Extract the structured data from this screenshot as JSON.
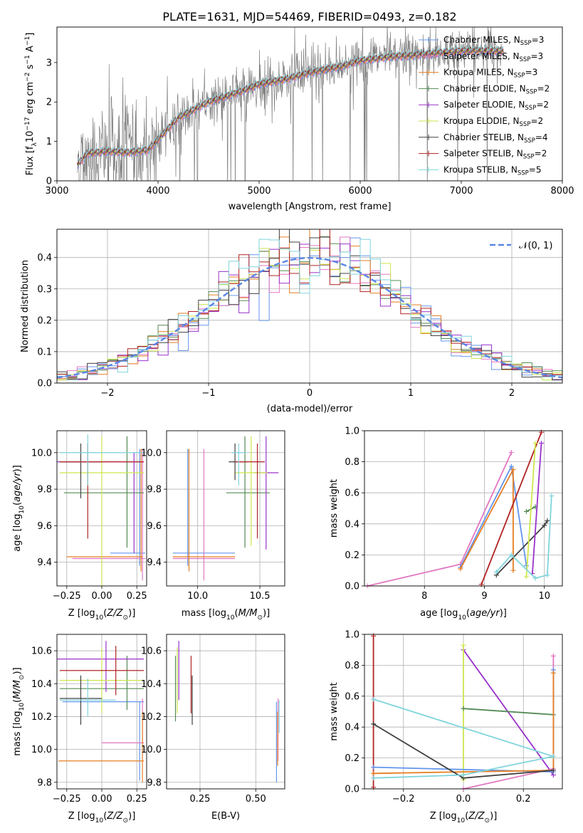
{
  "title": "PLATE=1631, MJD=54469, FIBERID=0493, z=0.182",
  "chart_data": [
    {
      "type": "line",
      "panel": "spectrum",
      "xlabel": "wavelength [Angstrom, rest frame]",
      "ylabel": "Flux [f_λ 10^-17 erg cm^-2 s^-1 A^-1]",
      "xlim": [
        3000,
        8000
      ],
      "ylim": [
        0,
        3.9
      ],
      "xticks": [
        3000,
        4000,
        5000,
        6000,
        7000,
        8000
      ],
      "yticks": [
        0,
        1,
        2,
        3
      ],
      "grid": false,
      "legend_position": "top-right",
      "legend": [
        {
          "base": "Chabrier MILES, N",
          "n": "3",
          "color": "#6495ed"
        },
        {
          "base": "Salpeter MILES, N",
          "n": "3",
          "color": "#e377c2"
        },
        {
          "base": "Kroupa MILES, N",
          "n": "3",
          "color": "#e67e22"
        },
        {
          "base": "Chabrier ELODIE, N",
          "n": "2",
          "color": "#548b54"
        },
        {
          "base": "Salpeter ELODIE, N",
          "n": "2",
          "color": "#9932cc"
        },
        {
          "base": "Kroupa ELODIE, N",
          "n": "2",
          "color": "#cde64c"
        },
        {
          "base": "Chabrier STELIB, N",
          "n": "4",
          "color": "#404040"
        },
        {
          "base": "Salpeter STELIB, N",
          "n": "2",
          "color": "#b22222"
        },
        {
          "base": "Kroupa STELIB, N",
          "n": "5",
          "color": "#7fd4dc"
        }
      ],
      "legend_subscript": "SSP",
      "observed_color": "#808080",
      "data_x_range": [
        3200,
        7420
      ],
      "model_x_range": [
        3200,
        7420
      ],
      "continuum_anchor_points": {
        "x": [
          3200,
          3300,
          3500,
          3700,
          3900,
          4000,
          4200,
          4500,
          4800,
          5000,
          5300,
          5500,
          5800,
          6000,
          6300,
          6600,
          6800,
          7000,
          7200,
          7420
        ],
        "y": [
          0.4,
          0.7,
          0.75,
          0.72,
          0.78,
          1.05,
          1.6,
          2.0,
          2.25,
          2.45,
          2.6,
          2.75,
          2.9,
          3.05,
          3.15,
          3.2,
          3.25,
          3.3,
          3.3,
          3.3
        ]
      }
    },
    {
      "type": "histogram",
      "panel": "residuals",
      "xlabel": "(data-model)/error",
      "ylabel": "Normed distribution",
      "xlim": [
        -2.5,
        2.5
      ],
      "ylim": [
        0,
        0.49
      ],
      "xticks": [
        -2,
        -1,
        0,
        1,
        2
      ],
      "yticks": [
        0.0,
        0.1,
        0.2,
        0.3,
        0.4
      ],
      "grid": true,
      "legend_position": "top-right",
      "reference_curve": {
        "name": "𝒩(0, 1)",
        "mean": 0,
        "sigma": 1,
        "color": "#5b86e5",
        "style": "dashed"
      },
      "bin_width": 0.1,
      "series_colors": [
        "#6495ed",
        "#e377c2",
        "#e67e22",
        "#548b54",
        "#9932cc",
        "#cde64c",
        "#404040",
        "#b22222",
        "#7fd4dc"
      ]
    },
    {
      "type": "scatter",
      "panel": "age-vs-Z",
      "xlabel": "Z [log10(Z/Z☉)]",
      "ylabel": "age [log10(age/yr)]",
      "xlim": [
        -0.32,
        0.32
      ],
      "ylim": [
        9.27,
        10.12
      ],
      "xticks": [
        -0.25,
        0.0,
        0.25
      ],
      "yticks": [
        9.4,
        9.6,
        9.8,
        10.0
      ],
      "grid": true,
      "points": [
        {
          "color": "#6495ed",
          "x": 0.27,
          "xerr": [
            0.21,
            0.04
          ],
          "y": 9.45,
          "yerr": [
            0.07,
            0.57
          ]
        },
        {
          "color": "#e377c2",
          "x": 0.29,
          "xerr": [
            0.5,
            0.02
          ],
          "y": 9.42,
          "yerr": [
            0.12,
            0.6
          ]
        },
        {
          "color": "#e67e22",
          "x": 0.28,
          "xerr": [
            0.53,
            0.01
          ],
          "y": 9.43,
          "yerr": [
            0.08,
            0.59
          ]
        },
        {
          "color": "#548b54",
          "x": 0.18,
          "xerr": [
            0.45,
            0.12
          ],
          "y": 9.78,
          "yerr": [
            0.3,
            0.31
          ]
        },
        {
          "color": "#9932cc",
          "x": 0.23,
          "xerr": [
            0.55,
            0.07
          ],
          "y": 9.95,
          "yerr": [
            0.5,
            0.05
          ]
        },
        {
          "color": "#cde64c",
          "x": 0.0,
          "xerr": [
            0.3,
            0.3
          ],
          "y": 9.89,
          "yerr": [
            0.62,
            0.2
          ]
        },
        {
          "color": "#404040",
          "x": -0.15,
          "xerr": [
            0.15,
            0.15
          ],
          "y": 9.95,
          "yerr": [
            0.2,
            0.1
          ]
        },
        {
          "color": "#b22222",
          "x": -0.1,
          "xerr": [
            0.2,
            0.4
          ],
          "y": 9.95,
          "yerr": [
            0.42,
            0.1
          ]
        },
        {
          "color": "#7fd4dc",
          "x": -0.1,
          "xerr": [
            0.2,
            0.4
          ],
          "y": 10.0,
          "yerr": [
            0.18,
            0.1
          ]
        }
      ]
    },
    {
      "type": "scatter",
      "panel": "age-vs-mass",
      "xlabel": "mass [log10(M/M☉)]",
      "ylabel": "",
      "xlim": [
        9.75,
        10.7
      ],
      "ylim": [
        9.27,
        10.12
      ],
      "xticks": [
        10.0,
        10.5
      ],
      "yticks": [
        9.4,
        9.6,
        9.8,
        10.0
      ],
      "grid": true,
      "points": [
        {
          "color": "#6495ed",
          "x": 9.92,
          "xerr": [
            0.12,
            0.38
          ],
          "y": 9.45,
          "yerr": [
            0.07,
            0.57
          ]
        },
        {
          "color": "#e377c2",
          "x": 10.05,
          "xerr": [
            0.25,
            0.25
          ],
          "y": 9.42,
          "yerr": [
            0.12,
            0.6
          ]
        },
        {
          "color": "#e67e22",
          "x": 9.93,
          "xerr": [
            0.13,
            0.37
          ],
          "y": 9.43,
          "yerr": [
            0.08,
            0.59
          ]
        },
        {
          "color": "#548b54",
          "x": 10.38,
          "xerr": [
            0.15,
            0.2
          ],
          "y": 9.78,
          "yerr": [
            0.3,
            0.31
          ]
        },
        {
          "color": "#9932cc",
          "x": 10.55,
          "xerr": [
            0.1,
            0.1
          ],
          "y": 9.89,
          "yerr": [
            0.42,
            0.2
          ]
        },
        {
          "color": "#cde64c",
          "x": 10.43,
          "xerr": [
            0.13,
            0.13
          ],
          "y": 9.89,
          "yerr": [
            0.4,
            0.2
          ]
        },
        {
          "color": "#404040",
          "x": 10.3,
          "xerr": [
            0.05,
            0.1
          ],
          "y": 9.95,
          "yerr": [
            0.1,
            0.1
          ]
        },
        {
          "color": "#b22222",
          "x": 10.48,
          "xerr": [
            0.18,
            0.06
          ],
          "y": 9.95,
          "yerr": [
            0.42,
            0.1
          ]
        },
        {
          "color": "#7fd4dc",
          "x": 10.33,
          "xerr": [
            0.06,
            0.06
          ],
          "y": 10.0,
          "yerr": [
            0.18,
            0.05
          ]
        }
      ]
    },
    {
      "type": "line",
      "panel": "massweight-vs-age",
      "xlabel": "age [log10(age/yr)]",
      "ylabel": "mass weight",
      "xlim": [
        7.0,
        10.3
      ],
      "ylim": [
        0,
        1.0
      ],
      "xticks": [
        8,
        9,
        10
      ],
      "yticks": [
        0.0,
        0.2,
        0.4,
        0.6,
        0.8,
        1.0
      ],
      "grid": true,
      "series": [
        {
          "color": "#e377c2",
          "x": [
            7.05,
            8.6,
            9.45
          ],
          "y": [
            0.0,
            0.14,
            0.86
          ]
        },
        {
          "color": "#6495ed",
          "x": [
            8.6,
            9.45,
            9.7
          ],
          "y": [
            0.12,
            0.77,
            0.13
          ]
        },
        {
          "color": "#e67e22",
          "x": [
            8.6,
            9.48,
            9.48
          ],
          "y": [
            0.11,
            0.75,
            0.1
          ]
        },
        {
          "color": "#404040",
          "x": [
            9.2,
            10.0,
            10.05
          ],
          "y": [
            0.07,
            0.39,
            0.42
          ]
        },
        {
          "color": "#548b54",
          "x": [
            9.7,
            9.85
          ],
          "y": [
            0.48,
            0.51
          ]
        },
        {
          "color": "#b22222",
          "x": [
            8.95,
            9.95
          ],
          "y": [
            0.01,
            0.99
          ]
        },
        {
          "color": "#9932cc",
          "x": [
            9.8,
            9.95
          ],
          "y": [
            0.08,
            0.92
          ]
        },
        {
          "color": "#cde64c",
          "x": [
            9.7,
            9.85
          ],
          "y": [
            0.06,
            0.92
          ]
        },
        {
          "color": "#7fd4dc",
          "x": [
            9.2,
            9.45,
            9.85,
            10.05,
            10.12
          ],
          "y": [
            0.09,
            0.2,
            0.05,
            0.07,
            0.58
          ]
        }
      ]
    },
    {
      "type": "scatter",
      "panel": "mass-vs-Z",
      "xlabel": "Z [log10(Z/Z☉)]",
      "ylabel": "mass [log10(M/M☉)]",
      "xlim": [
        -0.32,
        0.32
      ],
      "ylim": [
        9.76,
        10.7
      ],
      "xticks": [
        -0.25,
        0.0,
        0.25
      ],
      "yticks": [
        9.8,
        10.0,
        10.2,
        10.4,
        10.6
      ],
      "grid": true,
      "points": [
        {
          "color": "#6495ed",
          "x": 0.27,
          "xerr": [
            0.55,
            0.03
          ],
          "y": 10.29,
          "yerr": [
            0.48,
            0.0
          ]
        },
        {
          "color": "#e377c2",
          "x": 0.29,
          "xerr": [
            0.29,
            0.01
          ],
          "y": 10.04,
          "yerr": [
            0.0,
            0.27
          ]
        },
        {
          "color": "#e67e22",
          "x": 0.29,
          "xerr": [
            0.6,
            0.01
          ],
          "y": 9.93,
          "yerr": [
            0.13,
            0.3
          ]
        },
        {
          "color": "#548b54",
          "x": 0.18,
          "xerr": [
            0.48,
            0.12
          ],
          "y": 10.37,
          "yerr": [
            0.13,
            0.2
          ]
        },
        {
          "color": "#9932cc",
          "x": 0.03,
          "xerr": [
            0.35,
            0.27
          ],
          "y": 10.55,
          "yerr": [
            0.2,
            0.11
          ]
        },
        {
          "color": "#cde64c",
          "x": 0.0,
          "xerr": [
            0.3,
            0.3
          ],
          "y": 10.42,
          "yerr": [
            0.2,
            0.2
          ]
        },
        {
          "color": "#404040",
          "x": -0.15,
          "xerr": [
            0.15,
            0.15
          ],
          "y": 10.31,
          "yerr": [
            0.16,
            0.14
          ]
        },
        {
          "color": "#b22222",
          "x": 0.1,
          "xerr": [
            0.4,
            0.2
          ],
          "y": 10.48,
          "yerr": [
            0.15,
            0.15
          ]
        },
        {
          "color": "#7fd4dc",
          "x": -0.1,
          "xerr": [
            0.2,
            0.2
          ],
          "y": 10.3,
          "yerr": [
            0.1,
            0.13
          ]
        }
      ]
    },
    {
      "type": "scatter",
      "panel": "mass-vs-EBV",
      "xlabel": "E(B-V)",
      "ylabel": "",
      "xlim": [
        0.1,
        0.63
      ],
      "ylim": [
        9.76,
        10.7
      ],
      "xticks": [
        0.25,
        0.5
      ],
      "yticks": [
        9.8,
        10.0,
        10.2,
        10.4,
        10.6
      ],
      "grid": true,
      "points": [
        {
          "color": "#6495ed",
          "x": 0.593,
          "y": 10.05,
          "yerr": [
            0.25,
            0.24
          ]
        },
        {
          "color": "#e377c2",
          "x": 0.6,
          "y": 10.08,
          "yerr": [
            0.15,
            0.23
          ]
        },
        {
          "color": "#e67e22",
          "x": 0.598,
          "y": 10.05,
          "yerr": [
            0.15,
            0.18
          ]
        },
        {
          "color": "#548b54",
          "x": 0.14,
          "y": 10.37,
          "yerr": [
            0.2,
            0.2
          ]
        },
        {
          "color": "#9932cc",
          "x": 0.155,
          "y": 10.5,
          "yerr": [
            0.2,
            0.16
          ]
        },
        {
          "color": "#cde64c",
          "x": 0.148,
          "y": 10.42,
          "yerr": [
            0.2,
            0.2
          ]
        },
        {
          "color": "#404040",
          "x": 0.215,
          "y": 10.31,
          "yerr": [
            0.16,
            0.14
          ]
        },
        {
          "color": "#b22222",
          "x": 0.21,
          "y": 10.4,
          "yerr": [
            0.18,
            0.17
          ]
        },
        {
          "color": "#7fd4dc",
          "x": 0.605,
          "y": 10.2,
          "yerr": [
            0.1,
            0.1
          ]
        }
      ]
    },
    {
      "type": "line",
      "panel": "massweight-vs-Z",
      "xlabel": "Z [log10(Z/Z☉)]",
      "ylabel": "mass weight",
      "xlim": [
        -0.33,
        0.33
      ],
      "ylim": [
        0,
        1.0
      ],
      "xticks": [
        -0.2,
        0.0,
        0.2
      ],
      "yticks": [
        0.0,
        0.2,
        0.4,
        0.6,
        0.8,
        1.0
      ],
      "grid": true,
      "series": [
        {
          "color": "#b22222",
          "x": [
            -0.3,
            -0.3
          ],
          "y": [
            0.01,
            0.99
          ]
        },
        {
          "color": "#9932cc",
          "x": [
            0.0,
            0.3
          ],
          "y": [
            0.9,
            0.09
          ]
        },
        {
          "color": "#cde64c",
          "x": [
            0.0,
            0.0
          ],
          "y": [
            0.06,
            0.93
          ]
        },
        {
          "color": "#548b54",
          "x": [
            0.0,
            0.3
          ],
          "y": [
            0.52,
            0.48
          ]
        },
        {
          "color": "#e377c2",
          "x": [
            0.0,
            0.3,
            0.3
          ],
          "y": [
            0.0,
            0.13,
            0.86
          ]
        },
        {
          "color": "#6495ed",
          "x": [
            -0.3,
            0.3,
            0.3
          ],
          "y": [
            0.14,
            0.11,
            0.77
          ]
        },
        {
          "color": "#e67e22",
          "x": [
            -0.3,
            0.3,
            0.3
          ],
          "y": [
            0.1,
            0.12,
            0.75
          ]
        },
        {
          "color": "#404040",
          "x": [
            -0.3,
            0.0,
            0.3
          ],
          "y": [
            0.42,
            0.07,
            0.12
          ]
        },
        {
          "color": "#7fd4dc",
          "x": [
            -0.3,
            0.0,
            0.3,
            -0.3
          ],
          "y": [
            0.07,
            0.09,
            0.21,
            0.58
          ]
        }
      ]
    }
  ]
}
